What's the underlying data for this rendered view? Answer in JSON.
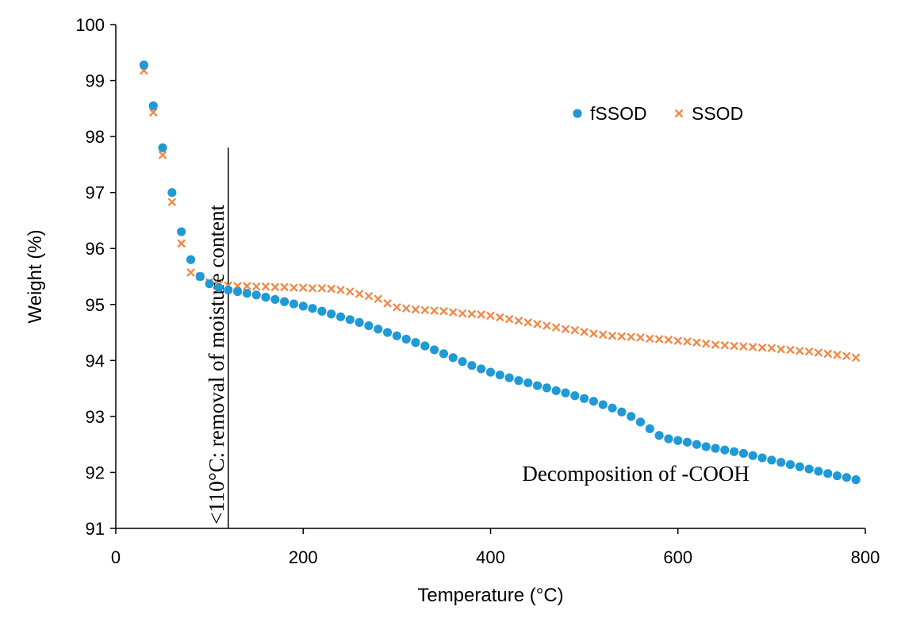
{
  "chart_data": {
    "type": "scatter",
    "title": "",
    "xlabel": "Temperature (°C)",
    "ylabel": "Weight (%)",
    "xlim": [
      0,
      800
    ],
    "ylim": [
      91,
      100
    ],
    "xticks": [
      "0",
      "200",
      "400",
      "600",
      "800"
    ],
    "yticks": [
      "91",
      "92",
      "93",
      "94",
      "95",
      "96",
      "97",
      "98",
      "99",
      "100"
    ],
    "grid": false,
    "legend_position": "top-right",
    "annotations": {
      "vline_x": 120,
      "vline_text": "<110°C: removal of moisture content",
      "region_text": "Decomposition of -COOH"
    },
    "series": [
      {
        "name": "fSSOD",
        "marker": "circle",
        "color": "#1f9ad6",
        "x": [
          30,
          40,
          50,
          60,
          70,
          80,
          90,
          100,
          110,
          120,
          130,
          140,
          150,
          160,
          170,
          180,
          190,
          200,
          210,
          220,
          230,
          240,
          250,
          260,
          270,
          280,
          290,
          300,
          310,
          320,
          330,
          340,
          350,
          360,
          370,
          380,
          390,
          400,
          410,
          420,
          430,
          440,
          450,
          460,
          470,
          480,
          490,
          500,
          510,
          520,
          530,
          540,
          550,
          560,
          570,
          580,
          590,
          600,
          610,
          620,
          630,
          640,
          650,
          660,
          670,
          680,
          690,
          700,
          710,
          720,
          730,
          740,
          750,
          760,
          770,
          780,
          790
        ],
        "y": [
          99.28,
          98.55,
          97.8,
          97.0,
          96.3,
          95.8,
          95.5,
          95.37,
          95.3,
          95.26,
          95.23,
          95.2,
          95.17,
          95.13,
          95.09,
          95.05,
          95.01,
          94.97,
          94.93,
          94.88,
          94.83,
          94.78,
          94.73,
          94.68,
          94.62,
          94.56,
          94.5,
          94.44,
          94.38,
          94.32,
          94.26,
          94.19,
          94.12,
          94.05,
          93.98,
          93.91,
          93.85,
          93.79,
          93.74,
          93.69,
          93.64,
          93.6,
          93.55,
          93.51,
          93.46,
          93.42,
          93.37,
          93.32,
          93.27,
          93.21,
          93.15,
          93.08,
          93.0,
          92.9,
          92.78,
          92.66,
          92.6,
          92.57,
          92.54,
          92.5,
          92.46,
          92.43,
          92.4,
          92.37,
          92.34,
          92.3,
          92.26,
          92.22,
          92.18,
          92.14,
          92.1,
          92.06,
          92.02,
          91.98,
          91.94,
          91.91,
          91.87
        ]
      },
      {
        "name": "SSOD",
        "marker": "x",
        "color": "#f08a4b",
        "x": [
          30,
          40,
          50,
          60,
          70,
          80,
          90,
          100,
          110,
          120,
          130,
          140,
          150,
          160,
          170,
          180,
          190,
          200,
          210,
          220,
          230,
          240,
          250,
          260,
          270,
          280,
          290,
          300,
          310,
          320,
          330,
          340,
          350,
          360,
          370,
          380,
          390,
          400,
          410,
          420,
          430,
          440,
          450,
          460,
          470,
          480,
          490,
          500,
          510,
          520,
          530,
          540,
          550,
          560,
          570,
          580,
          590,
          600,
          610,
          620,
          630,
          640,
          650,
          660,
          670,
          680,
          690,
          700,
          710,
          720,
          730,
          740,
          750,
          760,
          770,
          780,
          790
        ],
        "y": [
          99.18,
          98.43,
          97.67,
          96.83,
          96.09,
          95.57,
          95.5,
          95.4,
          95.36,
          95.34,
          95.33,
          95.33,
          95.32,
          95.32,
          95.31,
          95.31,
          95.3,
          95.3,
          95.29,
          95.29,
          95.28,
          95.26,
          95.23,
          95.19,
          95.15,
          95.1,
          95.02,
          94.95,
          94.93,
          94.91,
          94.9,
          94.89,
          94.88,
          94.86,
          94.84,
          94.83,
          94.82,
          94.8,
          94.77,
          94.74,
          94.71,
          94.68,
          94.65,
          94.62,
          94.59,
          94.56,
          94.54,
          94.51,
          94.48,
          94.46,
          94.44,
          94.43,
          94.42,
          94.41,
          94.39,
          94.38,
          94.37,
          94.35,
          94.34,
          94.32,
          94.3,
          94.28,
          94.27,
          94.26,
          94.25,
          94.24,
          94.23,
          94.22,
          94.2,
          94.19,
          94.17,
          94.16,
          94.14,
          94.12,
          94.1,
          94.08,
          94.05
        ]
      }
    ]
  }
}
